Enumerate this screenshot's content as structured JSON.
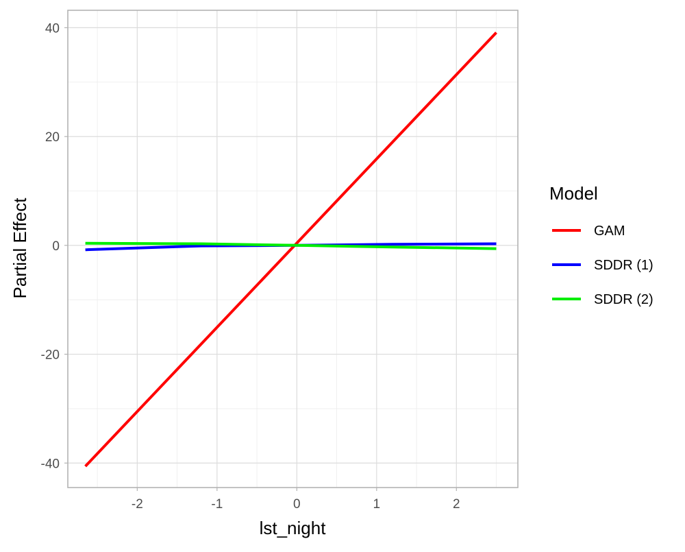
{
  "chart_data": {
    "type": "line",
    "title": "",
    "xlabel": "lst_night",
    "ylabel": "Partial Effect",
    "xlim": [
      -2.87,
      2.77
    ],
    "ylim": [
      -44.5,
      43.2
    ],
    "x_ticks": [
      -2,
      -1,
      0,
      1,
      2
    ],
    "y_ticks": [
      -40,
      -20,
      0,
      20,
      40
    ],
    "grid": true,
    "legend": {
      "title": "Model",
      "position": "right"
    },
    "series": [
      {
        "name": "GAM",
        "color": "#ff0000",
        "points": [
          [
            -2.65,
            -40.6
          ],
          [
            2.5,
            39.1
          ]
        ]
      },
      {
        "name": "SDDR (1)",
        "color": "#0000ff",
        "points": [
          [
            -2.65,
            -0.8
          ],
          [
            -1.2,
            -0.1
          ],
          [
            0.0,
            0.0
          ],
          [
            1.2,
            0.2
          ],
          [
            2.5,
            0.3
          ]
        ]
      },
      {
        "name": "SDDR (2)",
        "color": "#00ee00",
        "points": [
          [
            -2.65,
            0.4
          ],
          [
            -1.2,
            0.3
          ],
          [
            0.0,
            0.0
          ],
          [
            1.2,
            -0.3
          ],
          [
            2.5,
            -0.6
          ]
        ]
      }
    ]
  }
}
